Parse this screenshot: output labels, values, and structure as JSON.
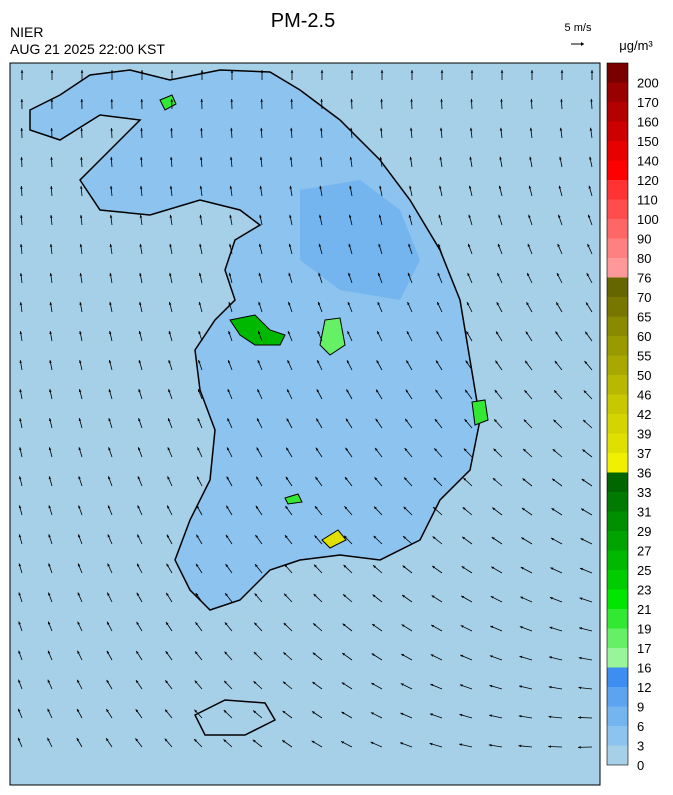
{
  "header": {
    "title": "PM-2.5",
    "agency": "NIER",
    "datetime": "AUG 21 2025 22:00 KST",
    "wind_scale": "5 m/s"
  },
  "colorbar": {
    "unit": "μg/m³",
    "levels": [
      0,
      3,
      6,
      9,
      12,
      16,
      17,
      19,
      21,
      23,
      25,
      27,
      29,
      31,
      33,
      36,
      37,
      39,
      42,
      46,
      50,
      55,
      60,
      65,
      70,
      76,
      80,
      90,
      100,
      110,
      120,
      140,
      150,
      160,
      170,
      200
    ],
    "colors": [
      "#a6cfe8",
      "#8cc3ef",
      "#74b4ef",
      "#5ca4f0",
      "#3d8ef0",
      "#99f599",
      "#66f066",
      "#33e833",
      "#00e600",
      "#00cc00",
      "#00b800",
      "#00a300",
      "#008f00",
      "#007a00",
      "#006600",
      "#f0f000",
      "#e0e000",
      "#d4d400",
      "#c8c800",
      "#b8b800",
      "#a8a800",
      "#999900",
      "#8a8a00",
      "#777700",
      "#666600",
      "#ff9999",
      "#ff8080",
      "#ff6666",
      "#ff4d4d",
      "#ff3333",
      "#ff0000",
      "#e60000",
      "#cc0000",
      "#b30000",
      "#990000",
      "#7a0000"
    ]
  }
}
